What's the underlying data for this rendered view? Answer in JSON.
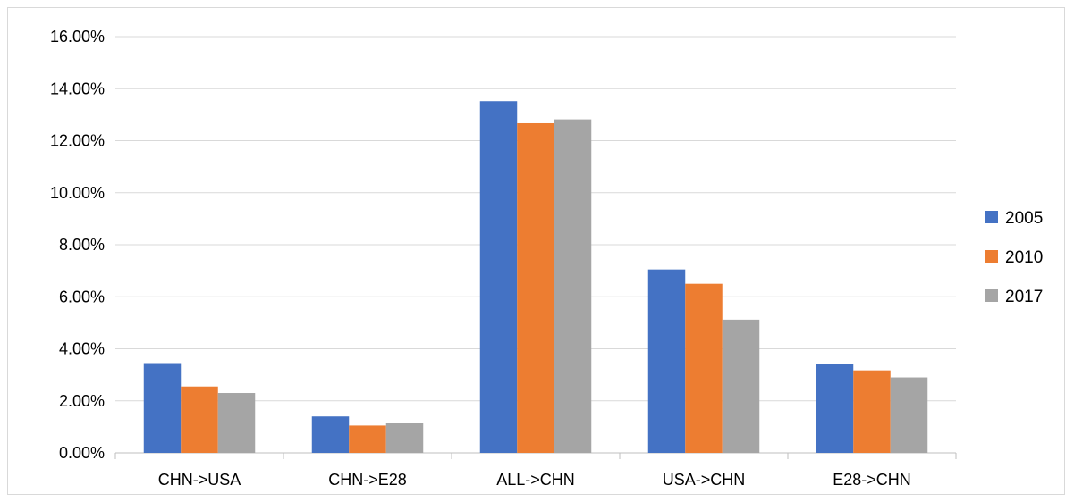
{
  "chart_data": {
    "type": "bar",
    "title": "",
    "xlabel": "",
    "ylabel": "",
    "categories": [
      "CHN->USA",
      "CHN->E28",
      "ALL->CHN",
      "USA->CHN",
      "E28->CHN"
    ],
    "series": [
      {
        "name": "2005",
        "color": "#4472C4",
        "values": [
          3.45,
          1.4,
          13.52,
          7.05,
          3.4
        ]
      },
      {
        "name": "2010",
        "color": "#ED7D31",
        "values": [
          2.55,
          1.05,
          12.67,
          6.5,
          3.17
        ]
      },
      {
        "name": "2017",
        "color": "#A5A5A5",
        "values": [
          2.3,
          1.15,
          12.82,
          5.12,
          2.9
        ]
      }
    ],
    "ylim": [
      0,
      16
    ],
    "yticks": [
      "0.00%",
      "2.00%",
      "4.00%",
      "6.00%",
      "8.00%",
      "10.00%",
      "12.00%",
      "14.00%",
      "16.00%"
    ],
    "grid": true,
    "legend_position": "right"
  }
}
